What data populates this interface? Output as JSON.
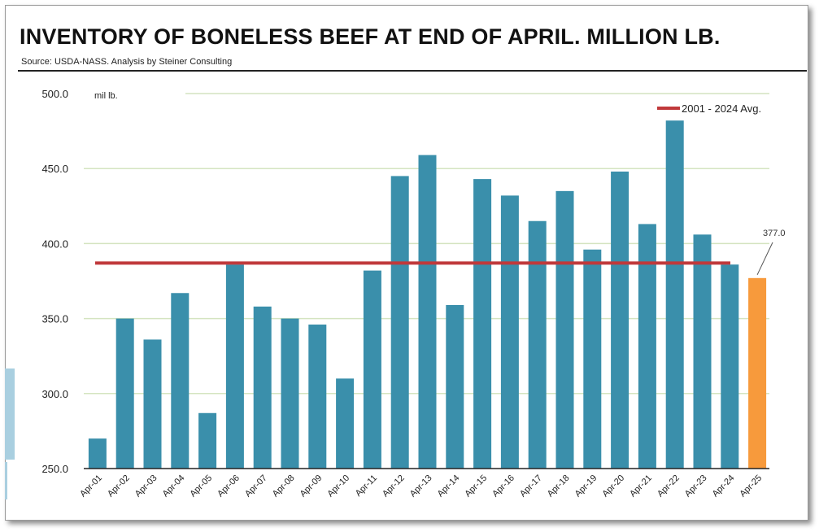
{
  "title": "INVENTORY OF BONELESS BEEF AT END OF APRIL. MILLION LB.",
  "source": "Source:  USDA-NASS.  Analysis by Steiner Consulting",
  "colors": {
    "bar": "#3a8fab",
    "highlight_bar": "#f79a3c",
    "average_line": "#c0393b",
    "grid": "#d4e4c0",
    "axis": "#222222"
  },
  "chart_data": {
    "type": "bar",
    "title": "INVENTORY OF BONELESS BEEF AT END OF APRIL. MILLION LB.",
    "ylabel": "mil lb.",
    "xlabel": "",
    "ylim": [
      250,
      500
    ],
    "yticks": [
      "500.0",
      "450.0",
      "400.0",
      "350.0",
      "300.0",
      "250.0"
    ],
    "grid": true,
    "legend_position": "top-right",
    "categories": [
      "Apr-01",
      "Apr-02",
      "Apr-03",
      "Apr-04",
      "Apr-05",
      "Apr-06",
      "Apr-07",
      "Apr-08",
      "Apr-09",
      "Apr-10",
      "Apr-11",
      "Apr-12",
      "Apr-13",
      "Apr-14",
      "Apr-15",
      "Apr-16",
      "Apr-17",
      "Apr-18",
      "Apr-19",
      "Apr-20",
      "Apr-21",
      "Apr-22",
      "Apr-23",
      "Apr-24",
      "Apr-25"
    ],
    "values": [
      270,
      350,
      336,
      367,
      287,
      386,
      358,
      350,
      346,
      310,
      382,
      445,
      459,
      359,
      443,
      432,
      415,
      435,
      396,
      448,
      413,
      482,
      406,
      386,
      377
    ],
    "highlight_index": 24,
    "annotation": {
      "text": "377.0",
      "index": 24
    },
    "average": {
      "name": "2001 - 2024 Avg.",
      "value": 387
    }
  }
}
